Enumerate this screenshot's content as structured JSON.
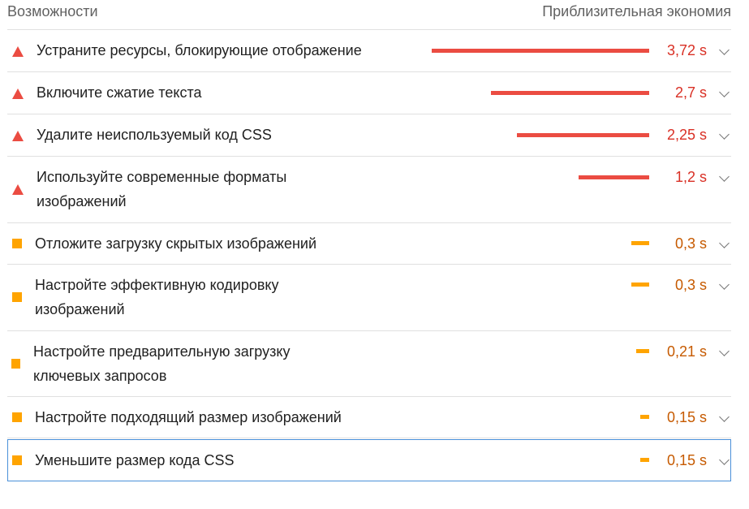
{
  "header": {
    "left": "Возможности",
    "right": "Приблизительная экономия"
  },
  "colors": {
    "fail": "#eb4c42",
    "average": "#ffa400"
  },
  "audits": [
    {
      "title": "Устраните ресурсы, блокирующие отображение",
      "saving": "3,72 s",
      "level": "fail",
      "icon": "warning-triangle-icon"
    },
    {
      "title": "Включите сжатие текста",
      "saving": "2,7 s",
      "level": "fail",
      "icon": "warning-triangle-icon"
    },
    {
      "title": "Удалите неиспользуемый код CSS",
      "saving": "2,25 s",
      "level": "fail",
      "icon": "warning-triangle-icon"
    },
    {
      "title": "Используйте современные форматы изображений",
      "saving": "1,2 s",
      "level": "fail",
      "icon": "warning-triangle-icon"
    },
    {
      "title": "Отложите загрузку скрытых изображений",
      "saving": "0,3 s",
      "level": "average",
      "icon": "average-square-icon"
    },
    {
      "title": "Настройте эффективную кодировку изображений",
      "saving": "0,3 s",
      "level": "average",
      "icon": "average-square-icon"
    },
    {
      "title": "Настройте предварительную загрузку ключевых запросов",
      "saving": "0,21 s",
      "level": "average",
      "icon": "average-square-icon"
    },
    {
      "title": "Настройте подходящий размер изображений",
      "saving": "0,15 s",
      "level": "average",
      "icon": "average-square-icon"
    },
    {
      "title": "Уменьшите размер кода CSS",
      "saving": "0,15 s",
      "level": "average",
      "icon": "average-square-icon"
    }
  ]
}
